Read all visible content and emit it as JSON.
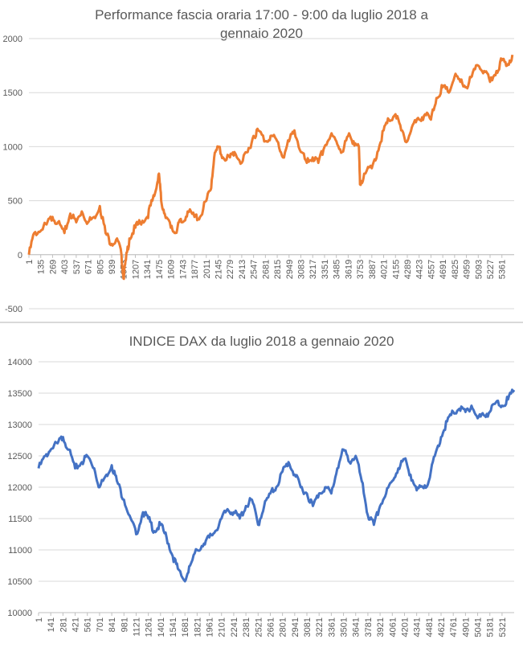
{
  "chart_data": [
    {
      "type": "line",
      "title": "Performance fascia oraria 17:00 - 9:00 da luglio 2018 a gennaio 2020",
      "title_line1": "Performance fascia oraria 17:00 - 9:00 da luglio 2018 a",
      "title_line2": "gennaio 2020",
      "xlabel": "",
      "ylabel": "",
      "ylim": [
        -500,
        2000
      ],
      "xlim": [
        1,
        5500
      ],
      "yticks": [
        -500,
        0,
        500,
        1000,
        1500,
        2000
      ],
      "xtick_labels": [
        1,
        135,
        269,
        403,
        537,
        671,
        805,
        939,
        1073,
        1207,
        1341,
        1475,
        1609,
        1743,
        1877,
        2011,
        2145,
        2279,
        2413,
        2547,
        2681,
        2815,
        2949,
        3083,
        3217,
        3351,
        3485,
        3619,
        3753,
        3887,
        4021,
        4155,
        4289,
        4423,
        4557,
        4691,
        4825,
        4959,
        5093,
        5227,
        5361
      ],
      "grid": true,
      "color": "#ED7D31",
      "series": [
        {
          "x": [
            1,
            60,
            135,
            200,
            269,
            330,
            403,
            470,
            537,
            600,
            671,
            740,
            805,
            870,
            939,
            1000,
            1050,
            1073,
            1100,
            1140,
            1207,
            1260,
            1341,
            1400,
            1440,
            1475,
            1500,
            1540,
            1609,
            1660,
            1700,
            1743,
            1800,
            1877,
            1940,
            2011,
            2060,
            2100,
            2145,
            2200,
            2279,
            2330,
            2413,
            2480,
            2547,
            2600,
            2681,
            2740,
            2815,
            2880,
            2949,
            3010,
            3083,
            3150,
            3217,
            3280,
            3351,
            3420,
            3485,
            3550,
            3619,
            3680,
            3740,
            3753,
            3800,
            3887,
            3950,
            4021,
            4080,
            4155,
            4220,
            4289,
            4350,
            4423,
            4490,
            4557,
            4620,
            4691,
            4760,
            4825,
            4890,
            4959,
            5020,
            5093,
            5160,
            5227,
            5300,
            5361,
            5420,
            5480
          ],
          "y": [
            0,
            200,
            220,
            280,
            350,
            300,
            200,
            380,
            300,
            400,
            300,
            350,
            450,
            200,
            100,
            150,
            0,
            -220,
            -50,
            150,
            250,
            300,
            350,
            500,
            600,
            750,
            500,
            380,
            250,
            200,
            300,
            300,
            400,
            350,
            350,
            500,
            600,
            900,
            1000,
            900,
            900,
            950,
            850,
            950,
            1100,
            1150,
            1050,
            1100,
            1050,
            900,
            1050,
            1150,
            950,
            850,
            900,
            850,
            1000,
            1100,
            1050,
            950,
            1100,
            1050,
            1000,
            650,
            750,
            800,
            950,
            1150,
            1250,
            1300,
            1150,
            1050,
            1200,
            1250,
            1300,
            1250,
            1450,
            1550,
            1500,
            1650,
            1600,
            1550,
            1650,
            1750,
            1700,
            1600,
            1700,
            1800,
            1750,
            1850
          ]
        }
      ]
    },
    {
      "type": "line",
      "title": "INDICE DAX da luglio 2018 a gennaio 2020",
      "xlabel": "",
      "ylabel": "",
      "ylim": [
        10000,
        14000
      ],
      "xlim": [
        1,
        5460
      ],
      "yticks": [
        10000,
        10500,
        11000,
        11500,
        12000,
        12500,
        13000,
        13500,
        14000
      ],
      "xtick_labels": [
        1,
        141,
        281,
        421,
        561,
        701,
        841,
        981,
        1121,
        1261,
        1401,
        1541,
        1681,
        1821,
        1961,
        2101,
        2241,
        2381,
        2521,
        2661,
        2801,
        2941,
        3081,
        3221,
        3361,
        3501,
        3641,
        3781,
        3921,
        4061,
        4201,
        4341,
        4481,
        4621,
        4761,
        4901,
        5041,
        5181,
        5321
      ],
      "grid": true,
      "color": "#4472C4",
      "series": [
        {
          "x": [
            1,
            80,
            141,
            220,
            281,
            350,
            421,
            500,
            561,
            640,
            701,
            780,
            841,
            900,
            981,
            1060,
            1121,
            1200,
            1261,
            1330,
            1401,
            1470,
            1541,
            1600,
            1681,
            1740,
            1821,
            1900,
            1961,
            2030,
            2101,
            2170,
            2241,
            2310,
            2381,
            2450,
            2521,
            2590,
            2661,
            2730,
            2801,
            2870,
            2941,
            3010,
            3081,
            3150,
            3221,
            3290,
            3361,
            3430,
            3501,
            3570,
            3641,
            3710,
            3781,
            3850,
            3921,
            3990,
            4061,
            4130,
            4201,
            4270,
            4341,
            4410,
            4481,
            4550,
            4621,
            4690,
            4761,
            4830,
            4901,
            4970,
            5041,
            5110,
            5181,
            5250,
            5321,
            5390,
            5460
          ],
          "y": [
            12300,
            12500,
            12600,
            12700,
            12800,
            12600,
            12300,
            12400,
            12500,
            12300,
            12000,
            12200,
            12350,
            12100,
            11800,
            11500,
            11250,
            11600,
            11500,
            11300,
            11400,
            11200,
            10900,
            10700,
            10500,
            10750,
            11000,
            11100,
            11200,
            11300,
            11500,
            11650,
            11600,
            11500,
            11700,
            11800,
            11400,
            11700,
            11900,
            12000,
            12250,
            12400,
            12200,
            12000,
            11900,
            11700,
            11900,
            12000,
            11900,
            12300,
            12600,
            12400,
            12500,
            12100,
            11550,
            11400,
            11700,
            11900,
            12100,
            12300,
            12450,
            12200,
            11950,
            12000,
            12100,
            12500,
            12800,
            13050,
            13200,
            13250,
            13200,
            13300,
            13100,
            13150,
            13200,
            13350,
            13300,
            13400,
            13550
          ]
        }
      ]
    }
  ]
}
